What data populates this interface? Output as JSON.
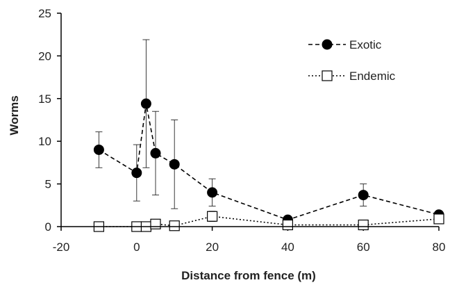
{
  "chart_data": {
    "type": "scatter",
    "title": "",
    "xlabel": "Distance from fence (m)",
    "ylabel": "Worms",
    "xlim": [
      -20,
      80
    ],
    "ylim": [
      0,
      25
    ],
    "xticks": [
      -20,
      0,
      20,
      40,
      60,
      80
    ],
    "yticks": [
      0,
      5,
      10,
      15,
      20,
      25
    ],
    "xtick_labels": [
      "-20",
      "0",
      "20",
      "40",
      "60",
      "80"
    ],
    "ytick_labels": [
      "0",
      "5",
      "10",
      "15",
      "20",
      "25"
    ],
    "grid": false,
    "legend_position": "top-right",
    "series": [
      {
        "name": "Exotic",
        "marker": "filled-circle",
        "line_style": "dashed",
        "color": "#000000",
        "x": [
          -10,
          0,
          2.5,
          5,
          10,
          20,
          40,
          60,
          80
        ],
        "y": [
          9.0,
          6.3,
          14.4,
          8.6,
          7.3,
          4.0,
          0.8,
          3.7,
          1.4
        ],
        "err": [
          2.1,
          3.3,
          7.5,
          4.9,
          5.2,
          1.6,
          0.0,
          1.3,
          0.0
        ]
      },
      {
        "name": "Endemic",
        "marker": "open-square",
        "line_style": "dotted",
        "color": "#000000",
        "x": [
          -10,
          0,
          2.5,
          5,
          10,
          20,
          40,
          60,
          80
        ],
        "y": [
          0.0,
          0.0,
          0.0,
          0.3,
          0.1,
          1.2,
          0.2,
          0.2,
          0.9
        ],
        "err": [
          0.0,
          0.0,
          0.0,
          0.0,
          0.0,
          0.6,
          0.0,
          0.0,
          0.0
        ]
      }
    ]
  }
}
